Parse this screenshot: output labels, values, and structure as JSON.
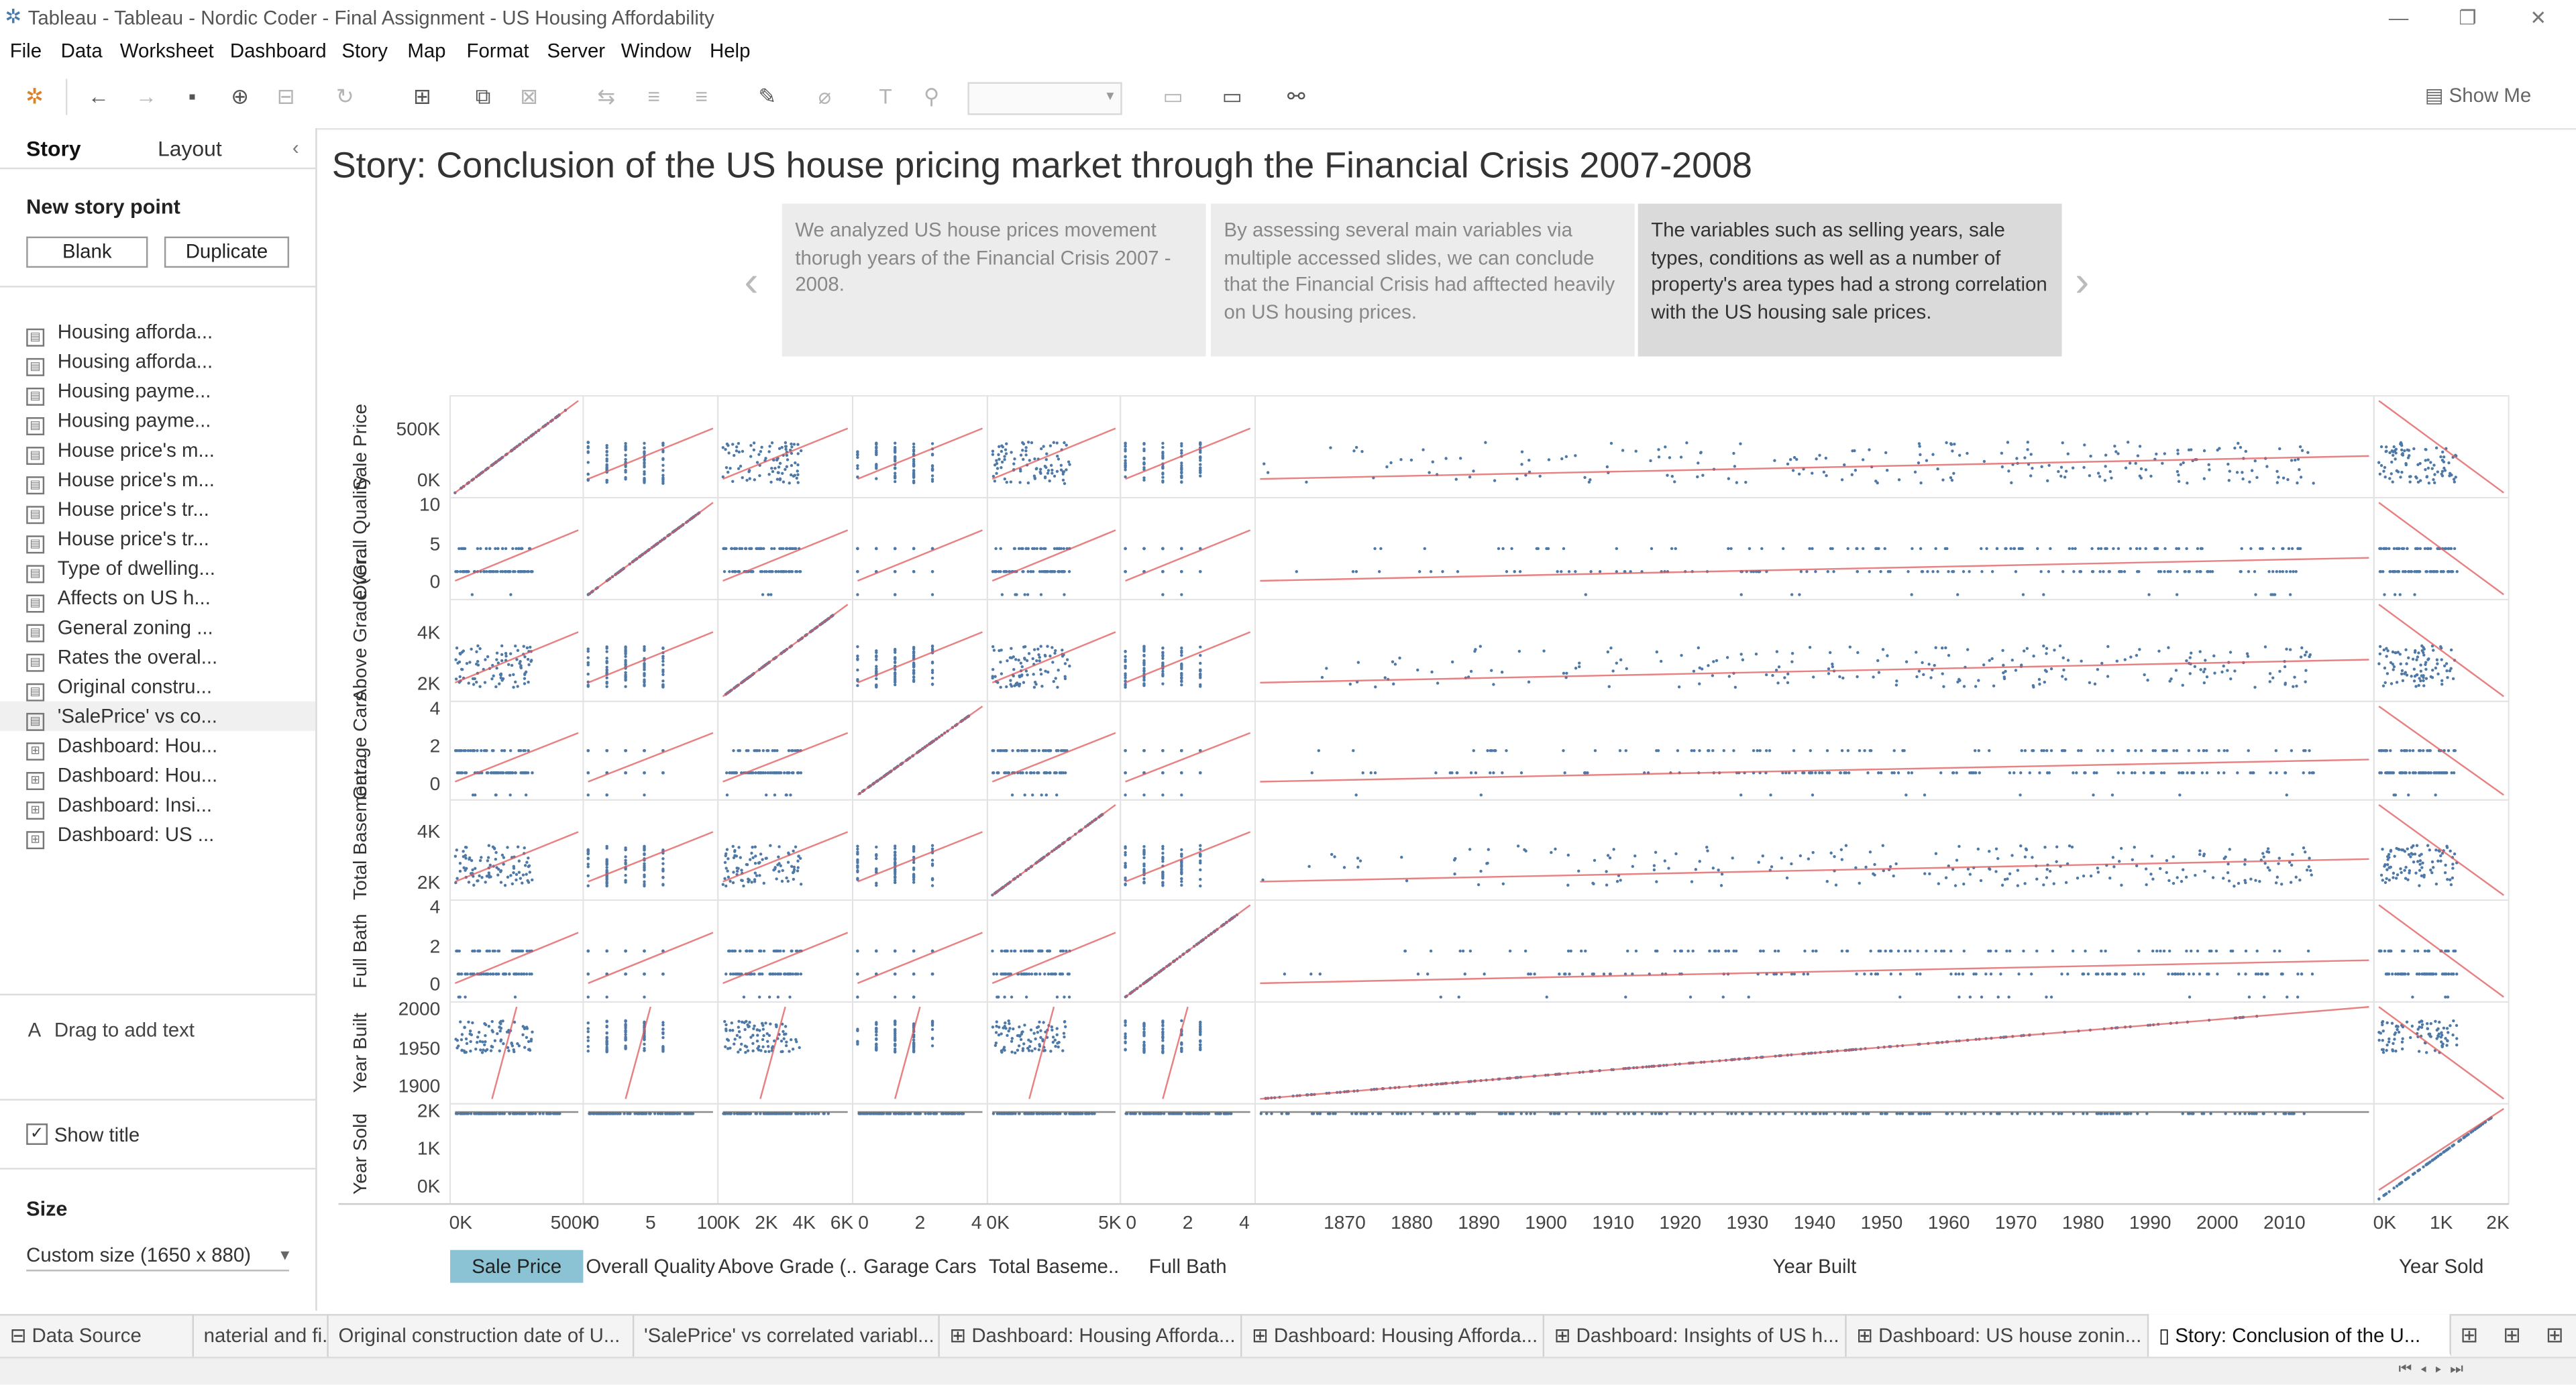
{
  "window": {
    "title": "Tableau - Tableau - Nordic Coder - Final Assignment - US Housing Affordability",
    "minimize": "—",
    "restore": "❐",
    "close": "✕"
  },
  "menu": [
    "File",
    "Data",
    "Worksheet",
    "Dashboard",
    "Story",
    "Map",
    "Format",
    "Server",
    "Window",
    "Help"
  ],
  "toolbar": {
    "show_me": "Show Me"
  },
  "left_pane": {
    "tab_story": "Story",
    "tab_layout": "Layout",
    "new_story_point": "New story point",
    "blank": "Blank",
    "duplicate": "Duplicate",
    "items": [
      "Housing afforda...",
      "Housing afforda...",
      "Housing payme...",
      "Housing payme...",
      "House price's m...",
      "House price's m...",
      "House price's tr...",
      "House price's tr...",
      "Type of dwelling...",
      "Affects on US h...",
      "General zoning ...",
      "Rates the overal...",
      "Original constru...",
      "'SalePrice' vs co...",
      "Dashboard: Hou...",
      "Dashboard: Hou...",
      "Dashboard: Insi...",
      "Dashboard: US ..."
    ],
    "drag_text": "Drag to add text",
    "show_title": "Show title",
    "size_label": "Size",
    "size_value": "Custom size (1650 x 880)"
  },
  "story": {
    "title": "Story: Conclusion of the US house pricing market through the Financial Crisis 2007-2008",
    "captions": [
      "We analyzed US house prices movement thorugh years of the Financial Crisis 2007 - 2008.",
      "By assessing several main variables  via multiple accessed slides, we can conclude that the Financial Crisis had afftected heavily on US housing prices.",
      "The variables such as selling years, sale types, conditions as well as a number of property's area types had a strong correlation with the US housing sale prices."
    ],
    "selected_caption": 2
  },
  "chart_data": {
    "type": "scatter",
    "title": "",
    "variables": [
      "Sale Price",
      "Overall Quality",
      "Above Grade (..",
      "Garage Cars",
      "Total Baseme..",
      "Full Bath",
      "Year Built",
      "Year Sold"
    ],
    "row_labels": [
      "Sale Price",
      "Overall Quality",
      "Above Grade (Gr...",
      "Garage Cars",
      "Total Basement...",
      "Full Bath",
      "Year Built",
      "Year Sold"
    ],
    "row_ticks": [
      [
        "500K",
        "0K"
      ],
      [
        "10",
        "5",
        "0"
      ],
      [
        "4K",
        "2K"
      ],
      [
        "4",
        "2",
        "0"
      ],
      [
        "4K",
        "2K"
      ],
      [
        "4",
        "2",
        "0"
      ],
      [
        "2000",
        "1950",
        "1900"
      ],
      [
        "2K",
        "1K",
        "0K"
      ]
    ],
    "x_ticks": [
      [
        "0K",
        "500K"
      ],
      [
        "0",
        "5",
        "10"
      ],
      [
        "0K",
        "2K",
        "4K",
        "6K"
      ],
      [
        "0",
        "2",
        "4"
      ],
      [
        "0K",
        "5K"
      ],
      [
        "0",
        "2",
        "4"
      ],
      [
        "1870",
        "1880",
        "1890",
        "1900",
        "1910",
        "1920",
        "1930",
        "1940",
        "1950",
        "1960",
        "1970",
        "1980",
        "1990",
        "2000",
        "2010"
      ],
      [
        "0K",
        "1K",
        "2K"
      ]
    ],
    "selected_column": "Sale Price",
    "point_color": "#4e79a7",
    "trend_color": "#e15759",
    "grid": false
  },
  "bottom_tabs": [
    {
      "label": "Data Source"
    },
    {
      "label": "naterial and fi..."
    },
    {
      "label": "Original construction date of U..."
    },
    {
      "label": "'SalePrice' vs correlated variabl..."
    },
    {
      "label": "Dashboard: Housing Afforda..."
    },
    {
      "label": "Dashboard: Housing Afforda..."
    },
    {
      "label": "Dashboard: Insights of US h..."
    },
    {
      "label": "Dashboard: US house zonin..."
    },
    {
      "label": "Story: Conclusion of the U..."
    }
  ]
}
